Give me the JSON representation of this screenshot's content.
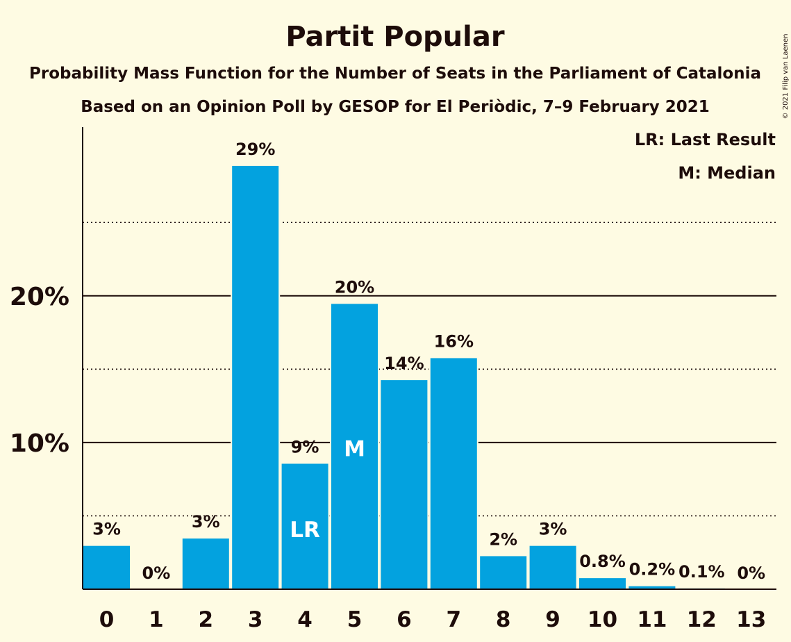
{
  "chart_data": {
    "type": "bar",
    "title": "Partit Popular",
    "subtitle": "Probability Mass Function for the Number of Seats in the Parliament of Catalonia",
    "subtitle2": "Based on an Opinion Poll by GESOP for El Periòdic, 7–9 February 2021",
    "copyright": "© 2021 Filip van Laenen",
    "legend": [
      "LR: Last Result",
      "M: Median"
    ],
    "legend_position": "top-right",
    "categories": [
      "0",
      "1",
      "2",
      "3",
      "4",
      "5",
      "6",
      "7",
      "8",
      "9",
      "10",
      "11",
      "12",
      "13"
    ],
    "values": [
      3.0,
      0.0,
      3.5,
      28.9,
      8.6,
      19.5,
      14.3,
      15.8,
      2.3,
      3.0,
      0.8,
      0.25,
      0.1,
      0.0
    ],
    "value_labels": [
      "3%",
      "0%",
      "3%",
      "29%",
      "9%",
      "20%",
      "14%",
      "16%",
      "2%",
      "3%",
      "0.8%",
      "0.2%",
      "0.1%",
      "0%"
    ],
    "ylim": [
      0,
      31.5
    ],
    "yticks": [
      {
        "value": 10,
        "label": "10%"
      },
      {
        "value": 20,
        "label": "20%"
      }
    ],
    "minor_gridlines": [
      5,
      15,
      25
    ],
    "bar_markers": [
      {
        "index": 4,
        "label": "LR"
      },
      {
        "index": 5,
        "label": "M"
      }
    ],
    "colors": {
      "bar": "#03A2DF",
      "background": "#FEFBE3",
      "text": "#1d0c0a"
    }
  }
}
